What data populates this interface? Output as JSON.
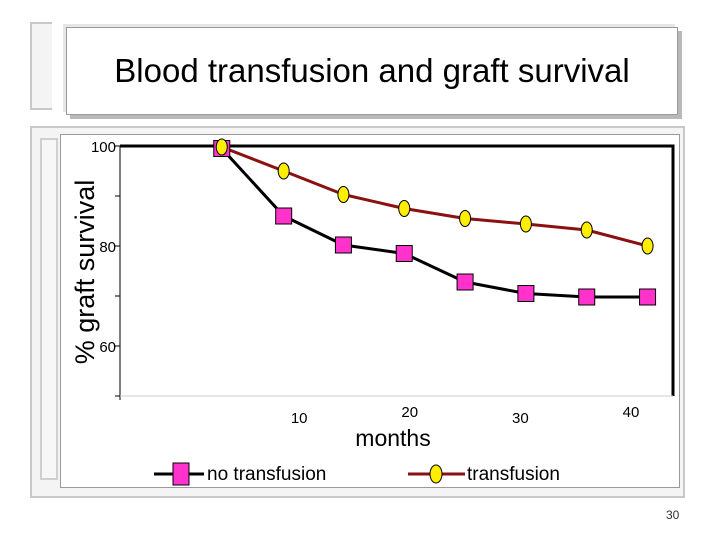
{
  "slide": {
    "title": "Blood transfusion and graft survival",
    "number": "30"
  },
  "colors": {
    "no_transfusion_line": "#000000",
    "no_transfusion_marker": "#ff33cc",
    "transfusion_line": "#8b1010",
    "transfusion_marker": "#ffee00"
  },
  "chart_data": {
    "type": "line",
    "xlabel": "months",
    "ylabel": "% graft survival",
    "xlim": [
      0,
      40
    ],
    "ylim": [
      50,
      100
    ],
    "xticks": [
      10,
      20,
      30,
      40
    ],
    "yticks": [
      60,
      80,
      100
    ],
    "grid": false,
    "legend_position": "bottom",
    "series": [
      {
        "name": "no transfusion",
        "marker": "square",
        "points": [
          [
            3,
            99.5
          ],
          [
            8.6,
            86
          ],
          [
            14,
            80.2
          ],
          [
            19.5,
            78.5
          ],
          [
            25,
            72.8
          ],
          [
            30.5,
            70.5
          ],
          [
            36,
            69.8
          ],
          [
            41.5,
            69.8
          ]
        ]
      },
      {
        "name": "transfusion",
        "marker": "circle",
        "points": [
          [
            3,
            99.8
          ],
          [
            8.6,
            95
          ],
          [
            14,
            90.3
          ],
          [
            19.5,
            87.5
          ],
          [
            25,
            85.5
          ],
          [
            30.5,
            84.4
          ],
          [
            36,
            83.2
          ],
          [
            41.5,
            80
          ]
        ]
      }
    ]
  }
}
